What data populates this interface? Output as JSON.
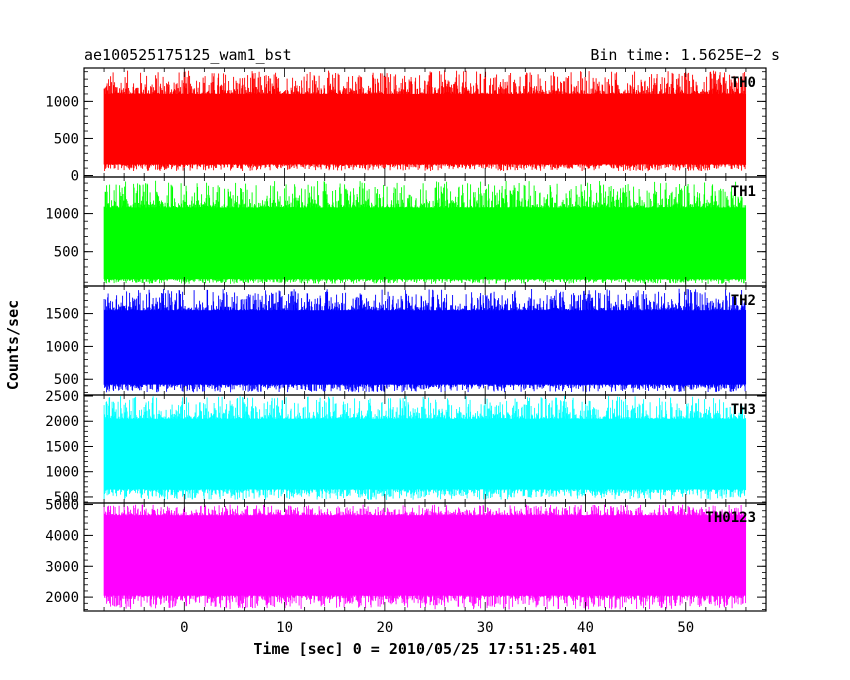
{
  "chart_data": {
    "type": "line",
    "title": "ae100525175125_wam1_bst",
    "subtitle": "Bin time: 1.5625E−2 s",
    "xlabel": "Time [sec] 0 = 2010/05/25 17:51:25.401",
    "ylabel": "Counts/sec",
    "xlim": [
      -10,
      58
    ],
    "x_range": [
      -8,
      56
    ],
    "xticks": [
      0,
      10,
      20,
      30,
      40,
      50
    ],
    "series": [
      {
        "name": "TH0",
        "color": "#ff0000",
        "ylim": [
          -20,
          1450
        ],
        "yticks": [
          0,
          500,
          1000
        ],
        "band": [
          150,
          1100
        ],
        "min": 60,
        "max": 1420
      },
      {
        "name": "TH1",
        "color": "#00ff00",
        "ylim": [
          50,
          1480
        ],
        "yticks": [
          500,
          1000
        ],
        "band": [
          140,
          1080
        ],
        "min": 80,
        "max": 1430
      },
      {
        "name": "TH2",
        "color": "#0000ff",
        "ylim": [
          260,
          1920
        ],
        "yticks": [
          500,
          1000,
          1500
        ],
        "band": [
          420,
          1550
        ],
        "min": 300,
        "max": 1880
      },
      {
        "name": "TH3",
        "color": "#00ffff",
        "ylim": [
          380,
          2520
        ],
        "yticks": [
          500,
          1000,
          1500,
          2000,
          2500
        ],
        "band": [
          650,
          2050
        ],
        "min": 440,
        "max": 2500
      },
      {
        "name": "TH0123",
        "color": "#ff00ff",
        "ylim": [
          1550,
          5050
        ],
        "yticks": [
          2000,
          3000,
          4000,
          5000
        ],
        "band": [
          2050,
          4650
        ],
        "min": 1600,
        "max": 5000
      }
    ]
  }
}
